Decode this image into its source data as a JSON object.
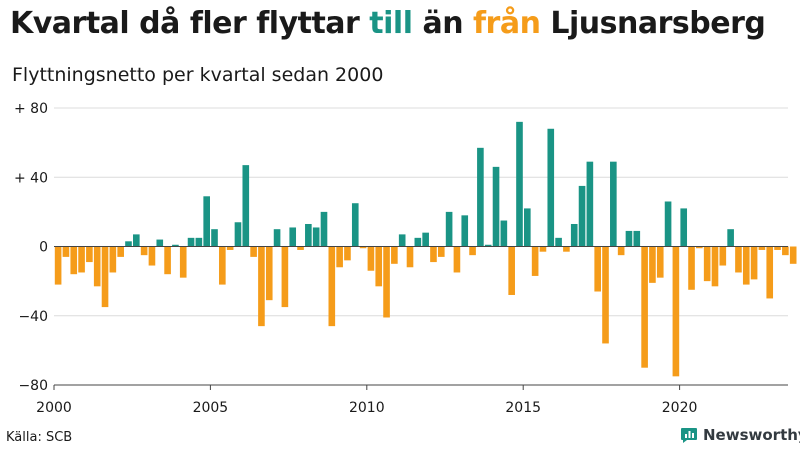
{
  "title": {
    "part1": "Kvartal då fler flyttar ",
    "till": "till",
    "part2": " än ",
    "fran": "från",
    "part3": " Ljusnarsberg"
  },
  "subtitle": "Flyttningsnetto per kvartal sedan 2000",
  "source": "Källa: SCB",
  "brand": {
    "name": "Newsworthy"
  },
  "colors": {
    "positive": "#1a9485",
    "negative": "#f59c1a",
    "title_accent_till": "#1a9485",
    "title_accent_fran": "#f59c1a"
  },
  "chart_data": {
    "type": "bar",
    "title": "Kvartal då fler flyttar till än från Ljusnarsberg",
    "subtitle": "Flyttningsnetto per kvartal sedan 2000",
    "xlabel": "",
    "ylabel": "",
    "ylim": [
      -80,
      80
    ],
    "yticks": [
      80,
      40,
      0,
      -40,
      -80
    ],
    "ytick_labels": [
      "+ 80",
      "+ 40",
      "0",
      "−40",
      "−80"
    ],
    "xticks": [
      2000,
      2005,
      2010,
      2015,
      2020
    ],
    "start_year": 2000,
    "values": [
      -22,
      -6,
      -16,
      -15,
      -9,
      -23,
      -35,
      -15,
      -6,
      3,
      7,
      -5,
      -11,
      4,
      -16,
      1,
      -18,
      5,
      5,
      29,
      10,
      -22,
      -2,
      14,
      47,
      -6,
      -46,
      -31,
      10,
      -35,
      11,
      -2,
      13,
      11,
      20,
      -46,
      -12,
      -8,
      25,
      -1,
      -14,
      -23,
      -41,
      -10,
      7,
      -12,
      5,
      8,
      -9,
      -6,
      20,
      -15,
      18,
      -5,
      57,
      1,
      46,
      15,
      -28,
      72,
      22,
      -17,
      -3,
      68,
      5,
      -3,
      13,
      35,
      49,
      -26,
      -56,
      49,
      -5,
      9,
      9,
      -70,
      -21,
      -18,
      26,
      -75,
      22,
      -25,
      -1,
      -20,
      -23,
      -11,
      10,
      -15,
      -22,
      -19,
      -2,
      -30,
      -2,
      -5,
      -10
    ],
    "grid": true
  }
}
